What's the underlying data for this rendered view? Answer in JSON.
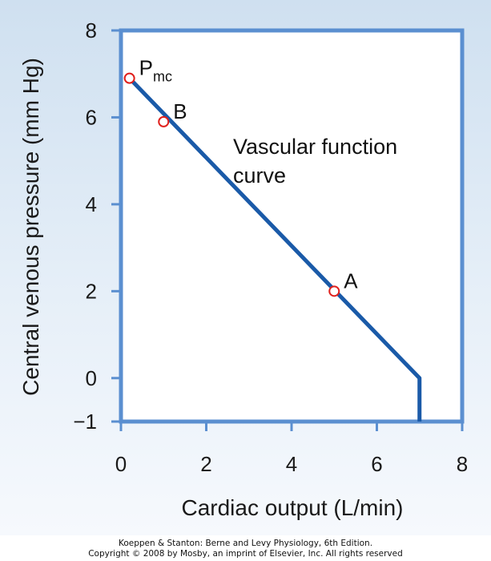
{
  "chart_data": {
    "type": "line",
    "title": "",
    "xlabel": "Cardiac output (L/min)",
    "ylabel": "Central venous pressure (mm Hg)",
    "xlim": [
      0,
      8
    ],
    "ylim": [
      -1,
      8
    ],
    "xticks": [
      "0",
      "2",
      "4",
      "6",
      "8"
    ],
    "yticks": [
      "8",
      "6",
      "4",
      "2",
      "0",
      "−1"
    ],
    "grid": false,
    "series": [
      {
        "name": "",
        "x": [
          0.2,
          7.0,
          7.0
        ],
        "y": [
          6.9,
          0.0,
          -1.0
        ]
      }
    ],
    "points": [
      {
        "label": "P",
        "subscript": "mc",
        "x": 0.2,
        "y": 6.9
      },
      {
        "label": "B",
        "x": 1.0,
        "y": 5.9
      },
      {
        "label": "A",
        "x": 5.0,
        "y": 2.0
      }
    ],
    "annotation": [
      "Vascular function",
      "curve"
    ]
  },
  "colors": {
    "curve": "#1a5aa8",
    "frame": "#5b8fd0",
    "marker_stroke": "#e0201c",
    "marker_fill": "#ffffff"
  },
  "credit": {
    "line1": "Koeppen & Stanton: Berne and Levy Physiology, 6th Edition.",
    "line2": "Copyright © 2008 by Mosby, an imprint of Elsevier, Inc. All rights reserved"
  }
}
